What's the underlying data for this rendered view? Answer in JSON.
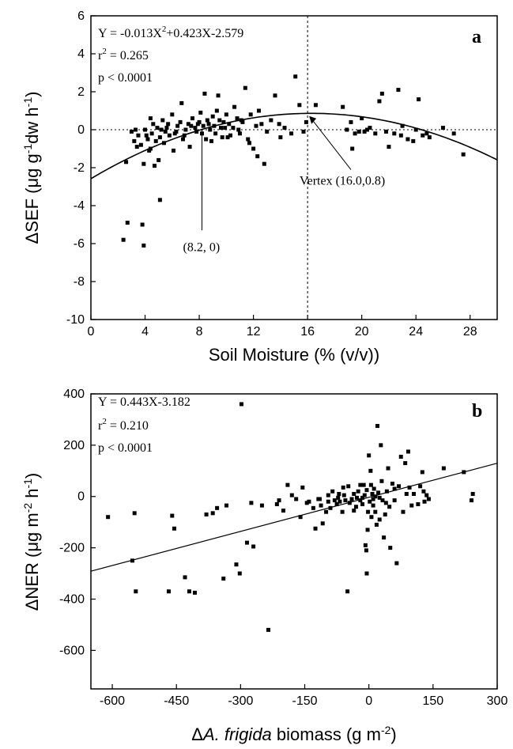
{
  "chart_data": [
    {
      "type": "scatter",
      "panel": "a",
      "xlabel": "Soil Moisture (% (v/v))",
      "ylabel_parts": [
        "ΔSEF (μg g",
        "-1",
        "dw h",
        "-1",
        ")"
      ],
      "xlim": [
        0,
        30
      ],
      "ylim": [
        -10,
        6
      ],
      "x_ticks": [
        0,
        4,
        8,
        12,
        16,
        20,
        24,
        28
      ],
      "y_ticks": [
        -10,
        -8,
        -6,
        -4,
        -2,
        0,
        2,
        4,
        6
      ],
      "x_tick_labels": [
        "0",
        "4",
        "8",
        "12",
        "16",
        "20",
        "24",
        "28"
      ],
      "y_tick_labels": [
        "-10",
        "-8",
        "-6",
        "-4",
        "-2",
        "0",
        "2",
        "4",
        "6"
      ],
      "stats": {
        "equation": [
          "Y = -0.013X",
          "2",
          "+0.423X-2.579"
        ],
        "r2": [
          "r",
          "2",
          " = 0.265"
        ],
        "p": "p < 0.0001"
      },
      "fit": {
        "kind": "quadratic",
        "a": -0.013,
        "b": 0.423,
        "c": -2.579
      },
      "reference_lines": {
        "y": 0,
        "x": 16
      },
      "annotations": [
        {
          "text": "Vertex (16.0,0.8)",
          "point": [
            16.0,
            0.8
          ]
        },
        {
          "text": "(8.2, 0)",
          "point": [
            8.2,
            0
          ]
        }
      ],
      "points": [
        [
          2.4,
          -5.8
        ],
        [
          2.7,
          -4.9
        ],
        [
          3.8,
          -5.0
        ],
        [
          3.9,
          -6.1
        ],
        [
          5.1,
          -3.7
        ],
        [
          2.6,
          -1.7
        ],
        [
          3.0,
          -0.1
        ],
        [
          3.2,
          -0.6
        ],
        [
          3.5,
          -0.3
        ],
        [
          3.7,
          -0.8
        ],
        [
          3.9,
          -1.8
        ],
        [
          4.0,
          0.0
        ],
        [
          4.2,
          -0.5
        ],
        [
          4.3,
          -1.1
        ],
        [
          4.4,
          0.6
        ],
        [
          4.5,
          -0.2
        ],
        [
          4.6,
          0.3
        ],
        [
          4.7,
          -1.9
        ],
        [
          4.8,
          -0.6
        ],
        [
          4.9,
          0.1
        ],
        [
          5.0,
          -1.6
        ],
        [
          5.1,
          -0.4
        ],
        [
          5.3,
          0.5
        ],
        [
          5.4,
          -0.7
        ],
        [
          5.5,
          -0.1
        ],
        [
          5.7,
          0.3
        ],
        [
          5.8,
          -0.3
        ],
        [
          6.0,
          0.8
        ],
        [
          6.1,
          -1.1
        ],
        [
          6.2,
          -0.2
        ],
        [
          6.4,
          0.2
        ],
        [
          6.6,
          0.4
        ],
        [
          6.7,
          1.4
        ],
        [
          6.8,
          -0.5
        ],
        [
          7.0,
          0.0
        ],
        [
          7.2,
          0.3
        ],
        [
          7.3,
          -0.9
        ],
        [
          7.5,
          0.6
        ],
        [
          7.7,
          0.1
        ],
        [
          7.8,
          -0.1
        ],
        [
          8.0,
          0.4
        ],
        [
          8.1,
          0.9
        ],
        [
          8.2,
          -0.2
        ],
        [
          8.3,
          0.2
        ],
        [
          8.4,
          1.9
        ],
        [
          8.5,
          -0.5
        ],
        [
          8.6,
          0.5
        ],
        [
          8.8,
          0.0
        ],
        [
          8.9,
          -0.6
        ],
        [
          9.0,
          0.7
        ],
        [
          9.1,
          0.2
        ],
        [
          9.2,
          -0.2
        ],
        [
          9.3,
          1.0
        ],
        [
          9.4,
          1.8
        ],
        [
          9.6,
          0.1
        ],
        [
          9.7,
          -0.4
        ],
        [
          9.8,
          0.4
        ],
        [
          10.0,
          0.8
        ],
        [
          10.2,
          0.3
        ],
        [
          10.3,
          -0.3
        ],
        [
          10.5,
          0.1
        ],
        [
          10.6,
          1.2
        ],
        [
          10.8,
          0.6
        ],
        [
          11.0,
          -0.2
        ],
        [
          11.2,
          0.4
        ],
        [
          11.4,
          2.2
        ],
        [
          11.6,
          -0.5
        ],
        [
          11.8,
          0.8
        ],
        [
          12.0,
          -1.0
        ],
        [
          12.3,
          -1.4
        ],
        [
          12.4,
          1.0
        ],
        [
          12.6,
          0.3
        ],
        [
          12.8,
          -1.8
        ],
        [
          13.0,
          -0.1
        ],
        [
          13.3,
          0.5
        ],
        [
          13.6,
          1.8
        ],
        [
          14.0,
          -0.4
        ],
        [
          14.3,
          0.1
        ],
        [
          14.8,
          -0.2
        ],
        [
          15.1,
          2.8
        ],
        [
          15.4,
          1.3
        ],
        [
          15.7,
          -0.1
        ],
        [
          16.6,
          1.3
        ],
        [
          18.6,
          1.2
        ],
        [
          19.2,
          0.4
        ],
        [
          19.3,
          -1.0
        ],
        [
          19.5,
          -0.2
        ],
        [
          19.8,
          -0.1
        ],
        [
          20.0,
          0.6
        ],
        [
          20.2,
          -0.1
        ],
        [
          20.4,
          0.0
        ],
        [
          20.6,
          0.1
        ],
        [
          21.0,
          -0.2
        ],
        [
          21.3,
          1.5
        ],
        [
          21.5,
          1.9
        ],
        [
          21.8,
          -0.1
        ],
        [
          22.0,
          -0.9
        ],
        [
          22.4,
          -0.2
        ],
        [
          22.7,
          2.1
        ],
        [
          23.0,
          0.2
        ],
        [
          23.4,
          -0.5
        ],
        [
          23.8,
          -0.6
        ],
        [
          24.0,
          0.0
        ],
        [
          24.2,
          1.6
        ],
        [
          24.5,
          -0.3
        ],
        [
          24.8,
          -0.2
        ],
        [
          25.0,
          -0.4
        ],
        [
          26.8,
          -0.2
        ],
        [
          27.5,
          -1.3
        ],
        [
          26.0,
          0.1
        ],
        [
          7.9,
          0.3
        ],
        [
          6.9,
          -0.3
        ],
        [
          5.6,
          0.1
        ],
        [
          4.1,
          -0.3
        ],
        [
          3.4,
          -0.9
        ],
        [
          9.5,
          0.5
        ],
        [
          10.9,
          0.0
        ],
        [
          12.2,
          0.2
        ],
        [
          13.9,
          0.3
        ],
        [
          11.7,
          -0.7
        ],
        [
          8.7,
          0.3
        ],
        [
          7.4,
          0.2
        ],
        [
          6.3,
          -0.1
        ],
        [
          5.2,
          0.0
        ],
        [
          3.3,
          0.0
        ],
        [
          4.4,
          -1.0
        ],
        [
          10.1,
          -0.4
        ],
        [
          9.9,
          0.1
        ],
        [
          11.1,
          0.5
        ],
        [
          15.9,
          0.4
        ],
        [
          18.9,
          0.0
        ],
        [
          22.9,
          -0.3
        ]
      ]
    },
    {
      "type": "scatter",
      "panel": "b",
      "xlabel_parts": [
        "Δ",
        "A. frigida",
        " biomass (g m",
        "-2",
        ")"
      ],
      "ylabel_parts": [
        "ΔNER (μg m",
        "-2",
        " h",
        "-1",
        ")"
      ],
      "xlim": [
        -650,
        300
      ],
      "ylim": [
        -750,
        400
      ],
      "x_ticks": [
        -600,
        -450,
        -300,
        -150,
        0,
        150,
        300
      ],
      "y_ticks": [
        -600,
        -400,
        -200,
        0,
        200,
        400
      ],
      "x_tick_labels": [
        "-600",
        "-450",
        "-300",
        "-150",
        "0",
        "150",
        "300"
      ],
      "y_tick_labels": [
        "-600",
        "-400",
        "-200",
        "0",
        "200",
        "400"
      ],
      "stats": {
        "equation": "Y = 0.443X-3.182",
        "r2": [
          "r",
          "2",
          " = 0.210"
        ],
        "p": "p < 0.0001"
      },
      "fit": {
        "kind": "linear",
        "slope": 0.443,
        "intercept": -3.182
      },
      "points": [
        [
          -610,
          -80
        ],
        [
          -553,
          -250
        ],
        [
          -548,
          -65
        ],
        [
          -545,
          -370
        ],
        [
          -468,
          -370
        ],
        [
          -460,
          -75
        ],
        [
          -455,
          -125
        ],
        [
          -430,
          -315
        ],
        [
          -420,
          -370
        ],
        [
          -407,
          -375
        ],
        [
          -380,
          -70
        ],
        [
          -365,
          -65
        ],
        [
          -355,
          -45
        ],
        [
          -340,
          -320
        ],
        [
          -333,
          -35
        ],
        [
          -310,
          -265
        ],
        [
          -302,
          -300
        ],
        [
          -298,
          360
        ],
        [
          -285,
          -180
        ],
        [
          -275,
          -25
        ],
        [
          -270,
          -195
        ],
        [
          -250,
          -35
        ],
        [
          -235,
          -520
        ],
        [
          -215,
          -30
        ],
        [
          -210,
          -15
        ],
        [
          -200,
          -55
        ],
        [
          -190,
          45
        ],
        [
          -180,
          5
        ],
        [
          -170,
          -10
        ],
        [
          -160,
          -80
        ],
        [
          -155,
          35
        ],
        [
          -145,
          -25
        ],
        [
          -140,
          -20
        ],
        [
          -130,
          -45
        ],
        [
          -125,
          -125
        ],
        [
          -118,
          -10
        ],
        [
          -112,
          -35
        ],
        [
          -108,
          -105
        ],
        [
          -100,
          -60
        ],
        [
          -95,
          5
        ],
        [
          -90,
          -45
        ],
        [
          -85,
          20
        ],
        [
          -80,
          -15
        ],
        [
          -75,
          -30
        ],
        [
          -72,
          -5
        ],
        [
          -68,
          -20
        ],
        [
          -62,
          -60
        ],
        [
          -58,
          5
        ],
        [
          -55,
          -15
        ],
        [
          -50,
          -370
        ],
        [
          -48,
          40
        ],
        [
          -45,
          -25
        ],
        [
          -40,
          -10
        ],
        [
          -35,
          10
        ],
        [
          -30,
          -40
        ],
        [
          -28,
          -5
        ],
        [
          -25,
          20
        ],
        [
          -20,
          -15
        ],
        [
          -15,
          -30
        ],
        [
          -12,
          45
        ],
        [
          -10,
          5
        ],
        [
          -8,
          -190
        ],
        [
          -6,
          -210
        ],
        [
          -5,
          -300
        ],
        [
          -3,
          -130
        ],
        [
          -2,
          -60
        ],
        [
          0,
          160
        ],
        [
          2,
          -20
        ],
        [
          4,
          100
        ],
        [
          5,
          45
        ],
        [
          6,
          -80
        ],
        [
          8,
          10
        ],
        [
          10,
          -35
        ],
        [
          12,
          30
        ],
        [
          15,
          -60
        ],
        [
          18,
          -110
        ],
        [
          20,
          275
        ],
        [
          22,
          15
        ],
        [
          25,
          -90
        ],
        [
          28,
          200
        ],
        [
          30,
          60
        ],
        [
          32,
          -15
        ],
        [
          35,
          -160
        ],
        [
          38,
          -70
        ],
        [
          40,
          -25
        ],
        [
          42,
          20
        ],
        [
          45,
          110
        ],
        [
          48,
          -40
        ],
        [
          50,
          -200
        ],
        [
          55,
          50
        ],
        [
          60,
          -15
        ],
        [
          65,
          -260
        ],
        [
          70,
          40
        ],
        [
          75,
          155
        ],
        [
          80,
          -60
        ],
        [
          85,
          130
        ],
        [
          88,
          10
        ],
        [
          92,
          175
        ],
        [
          95,
          35
        ],
        [
          100,
          -35
        ],
        [
          105,
          10
        ],
        [
          115,
          -30
        ],
        [
          120,
          40
        ],
        [
          125,
          95
        ],
        [
          128,
          20
        ],
        [
          130,
          -20
        ],
        [
          135,
          5
        ],
        [
          140,
          -10
        ],
        [
          175,
          110
        ],
        [
          222,
          95
        ],
        [
          240,
          -15
        ],
        [
          243,
          10
        ],
        [
          -20,
          45
        ],
        [
          15,
          0
        ],
        [
          -115,
          -10
        ],
        [
          -35,
          -55
        ],
        [
          -5,
          25
        ],
        [
          10,
          -10
        ],
        [
          25,
          -5
        ],
        [
          60,
          30
        ],
        [
          -60,
          35
        ],
        [
          -95,
          -20
        ],
        [
          -70,
          10
        ],
        [
          -15,
          -5
        ]
      ]
    }
  ]
}
